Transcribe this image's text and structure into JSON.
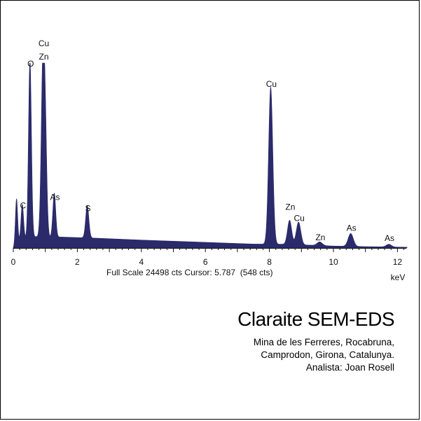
{
  "chart_data": {
    "type": "line",
    "title": "Claraite SEM-EDS",
    "subtitle_lines": [
      "Mina de les Ferreres, Rocabruna,",
      "Camprodon, Girona, Catalunya.",
      "Analista: Joan Rosell"
    ],
    "xlabel": "keV",
    "ylabel": "",
    "xlim": [
      0,
      12.3
    ],
    "ylim": [
      0,
      24498
    ],
    "x_ticks": [
      0,
      2,
      4,
      6,
      8,
      10,
      12
    ],
    "fill_color": "#2b2a6b",
    "status": {
      "full_scale": "Full Scale 24498 cts",
      "cursor": "Cursor: 5.787  (548 cts)"
    },
    "series": [
      {
        "peaks": [
          {
            "x": 0.1,
            "y": 6000,
            "w": 0.035
          },
          {
            "x": 0.28,
            "y": 4700,
            "w": 0.04
          },
          {
            "x": 0.52,
            "y": 23500,
            "w": 0.045
          },
          {
            "x": 0.93,
            "y": 24400,
            "w": 0.055
          },
          {
            "x": 1.01,
            "y": 9000,
            "w": 0.045
          },
          {
            "x": 1.28,
            "y": 5800,
            "w": 0.045
          },
          {
            "x": 2.31,
            "y": 4300,
            "w": 0.05
          },
          {
            "x": 8.04,
            "y": 20800,
            "w": 0.065
          },
          {
            "x": 8.63,
            "y": 3200,
            "w": 0.065
          },
          {
            "x": 8.91,
            "y": 3000,
            "w": 0.07
          },
          {
            "x": 9.57,
            "y": 480,
            "w": 0.08
          },
          {
            "x": 10.54,
            "y": 1700,
            "w": 0.08
          },
          {
            "x": 11.73,
            "y": 360,
            "w": 0.08
          }
        ],
        "background": [
          [
            0.0,
            0
          ],
          [
            0.18,
            900
          ],
          [
            0.5,
            1500
          ],
          [
            1.5,
            1450
          ],
          [
            2.6,
            1300
          ],
          [
            4.0,
            1050
          ],
          [
            6.0,
            750
          ],
          [
            7.5,
            520
          ],
          [
            8.4,
            500
          ],
          [
            9.0,
            420
          ],
          [
            10.0,
            260
          ],
          [
            11.0,
            180
          ],
          [
            12.3,
            100
          ]
        ]
      }
    ],
    "peak_labels": [
      {
        "text": "C",
        "x": 0.28,
        "y": 4700
      },
      {
        "text": "O",
        "x": 0.52,
        "y": 23500
      },
      {
        "text": "Cu",
        "x": 0.93,
        "y": 24400,
        "line": 2
      },
      {
        "text": "Zn",
        "x": 0.93,
        "y": 24400,
        "line": 1
      },
      {
        "text": "As",
        "x": 1.28,
        "y": 5800
      },
      {
        "text": "S",
        "x": 2.31,
        "y": 4300
      },
      {
        "text": "Cu",
        "x": 8.04,
        "y": 20800
      },
      {
        "text": "Zn",
        "x": 8.63,
        "y": 3200,
        "dy": -14
      },
      {
        "text": "Cu",
        "x": 8.91,
        "y": 3000
      },
      {
        "text": "Zn",
        "x": 9.57,
        "y": 480
      },
      {
        "text": "As",
        "x": 10.54,
        "y": 1700
      },
      {
        "text": "As",
        "x": 11.73,
        "y": 360
      }
    ]
  }
}
